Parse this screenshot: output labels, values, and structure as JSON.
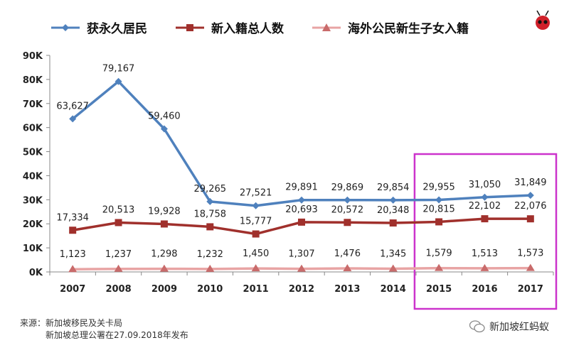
{
  "legend": {
    "s1": "获永久居民",
    "s2": "新入籍总人数",
    "s3": "海外公民新生子女入籍"
  },
  "source": {
    "line1": "来源：新加坡移民及关卡局",
    "line2": "新加坡总理公署在27.09.2018年发布"
  },
  "brand": {
    "name": "新加坡红蚂蚁"
  },
  "colors": {
    "series1": "#4f81bd",
    "series2": "#a0302c",
    "series3": "#e8a4a4",
    "highlight": "#cc33cc",
    "axis": "#888888"
  },
  "chart_data": {
    "type": "line",
    "x": [
      "2007",
      "2008",
      "2009",
      "2010",
      "2011",
      "2012",
      "2013",
      "2014",
      "2015",
      "2016",
      "2017"
    ],
    "ylim": [
      0,
      90000
    ],
    "yticks": [
      "0K",
      "10K",
      "20K",
      "30K",
      "40K",
      "50K",
      "60K",
      "70K",
      "80K",
      "90K"
    ],
    "grid": false,
    "legend_position": "top",
    "highlight_range": [
      "2015",
      "2017"
    ],
    "series": [
      {
        "name": "获永久居民",
        "marker": "diamond",
        "values": [
          63627,
          79167,
          59460,
          29265,
          27521,
          29891,
          29869,
          29854,
          29955,
          31050,
          31849
        ],
        "labels": [
          "63,627",
          "79,167",
          "59,460",
          "29,265",
          "27,521",
          "29,891",
          "29,869",
          "29,854",
          "29,955",
          "31,050",
          "31,849"
        ]
      },
      {
        "name": "新入籍总人数",
        "marker": "square",
        "values": [
          17334,
          20513,
          19928,
          18758,
          15777,
          20693,
          20572,
          20348,
          20815,
          22102,
          22076
        ],
        "labels": [
          "17,334",
          "20,513",
          "19,928",
          "18,758",
          "15,777",
          "20,693",
          "20,572",
          "20,348",
          "20,815",
          "22,102",
          "22,076"
        ]
      },
      {
        "name": "海外公民新生子女入籍",
        "marker": "triangle",
        "values": [
          1123,
          1237,
          1298,
          1232,
          1450,
          1307,
          1476,
          1345,
          1579,
          1513,
          1573
        ],
        "labels": [
          "1,123",
          "1,237",
          "1,298",
          "1,232",
          "1,450",
          "1,307",
          "1,476",
          "1,345",
          "1,579",
          "1,513",
          "1,573"
        ]
      }
    ]
  }
}
